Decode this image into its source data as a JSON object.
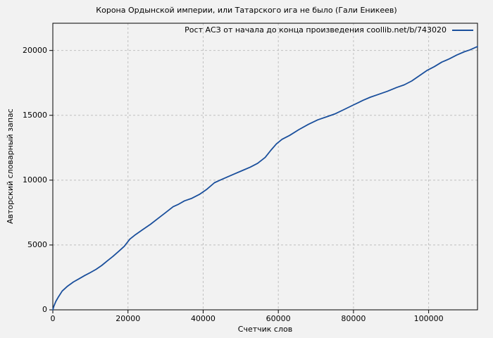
{
  "colors": {
    "background": "#f2f2f2",
    "line": "#1a4f9c",
    "grid": "#c0c0c0",
    "axis": "#000000",
    "text": "#000000"
  },
  "chart_data": {
    "type": "line",
    "title": "Корона Ордынской империи, или Татарского ига не было (Гали Еникеев)",
    "xlabel": "Счетчик слов",
    "ylabel": "Авторский словарный запас",
    "xlim": [
      0,
      113000
    ],
    "ylim": [
      0,
      22100
    ],
    "xticks": [
      0,
      20000,
      40000,
      60000,
      80000,
      100000
    ],
    "yticks": [
      0,
      5000,
      10000,
      15000,
      20000
    ],
    "grid": true,
    "grid_style": "dashed",
    "legend_position": "top-right-inside",
    "series": [
      {
        "name": "Рост АСЗ от начала до конца произведения coollib.net/b/743020",
        "color": "#1a4f9c",
        "points": [
          [
            0,
            0
          ],
          [
            300,
            300
          ],
          [
            800,
            650
          ],
          [
            1500,
            1000
          ],
          [
            2500,
            1450
          ],
          [
            3800,
            1800
          ],
          [
            5500,
            2150
          ],
          [
            7000,
            2400
          ],
          [
            8500,
            2650
          ],
          [
            10000,
            2880
          ],
          [
            11500,
            3120
          ],
          [
            13000,
            3420
          ],
          [
            14500,
            3780
          ],
          [
            16000,
            4120
          ],
          [
            17500,
            4500
          ],
          [
            19000,
            4900
          ],
          [
            20500,
            5450
          ],
          [
            22000,
            5800
          ],
          [
            24000,
            6200
          ],
          [
            26000,
            6600
          ],
          [
            28000,
            7050
          ],
          [
            30000,
            7500
          ],
          [
            32000,
            7950
          ],
          [
            33500,
            8150
          ],
          [
            35000,
            8400
          ],
          [
            37000,
            8600
          ],
          [
            39000,
            8900
          ],
          [
            41000,
            9300
          ],
          [
            43000,
            9800
          ],
          [
            44500,
            10000
          ],
          [
            46500,
            10250
          ],
          [
            48500,
            10500
          ],
          [
            50500,
            10750
          ],
          [
            52500,
            11000
          ],
          [
            54500,
            11300
          ],
          [
            56500,
            11750
          ],
          [
            58000,
            12300
          ],
          [
            59500,
            12800
          ],
          [
            61000,
            13150
          ],
          [
            63000,
            13450
          ],
          [
            65500,
            13900
          ],
          [
            68000,
            14300
          ],
          [
            70500,
            14650
          ],
          [
            73000,
            14900
          ],
          [
            75000,
            15100
          ],
          [
            77500,
            15450
          ],
          [
            80000,
            15800
          ],
          [
            82500,
            16150
          ],
          [
            84500,
            16400
          ],
          [
            86500,
            16600
          ],
          [
            89000,
            16850
          ],
          [
            91500,
            17150
          ],
          [
            93500,
            17350
          ],
          [
            95500,
            17650
          ],
          [
            97500,
            18050
          ],
          [
            99500,
            18450
          ],
          [
            101500,
            18750
          ],
          [
            103500,
            19100
          ],
          [
            105500,
            19350
          ],
          [
            107500,
            19650
          ],
          [
            109500,
            19900
          ],
          [
            111000,
            20050
          ],
          [
            113000,
            20300
          ]
        ]
      }
    ]
  }
}
